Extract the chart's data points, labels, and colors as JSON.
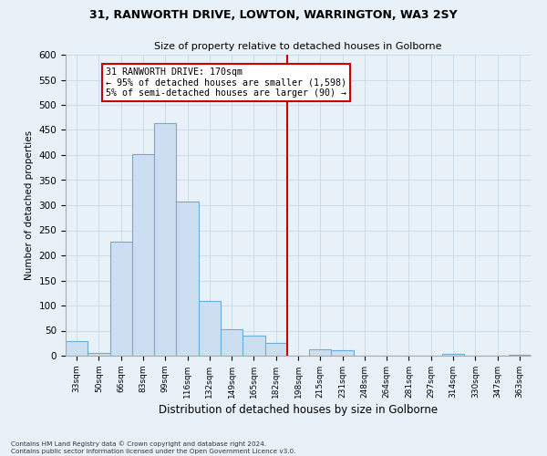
{
  "title_line1": "31, RANWORTH DRIVE, LOWTON, WARRINGTON, WA3 2SY",
  "title_line2": "Size of property relative to detached houses in Golborne",
  "xlabel": "Distribution of detached houses by size in Golborne",
  "ylabel": "Number of detached properties",
  "categories": [
    "33sqm",
    "50sqm",
    "66sqm",
    "83sqm",
    "99sqm",
    "116sqm",
    "132sqm",
    "149sqm",
    "165sqm",
    "182sqm",
    "198sqm",
    "215sqm",
    "231sqm",
    "248sqm",
    "264sqm",
    "281sqm",
    "297sqm",
    "314sqm",
    "330sqm",
    "347sqm",
    "363sqm"
  ],
  "values": [
    30,
    5,
    228,
    402,
    463,
    308,
    110,
    52,
    40,
    25,
    0,
    13,
    11,
    0,
    0,
    0,
    0,
    3,
    0,
    0,
    1
  ],
  "bar_color": "#ccdff0",
  "bar_edge_color": "#6aadd5",
  "vline_x": 9.5,
  "vline_color": "#cc0000",
  "annotation_text": "31 RANWORTH DRIVE: 170sqm\n← 95% of detached houses are smaller (1,598)\n5% of semi-detached houses are larger (90) →",
  "annotation_box_color": "#cc0000",
  "ylim": [
    0,
    600
  ],
  "yticks": [
    0,
    50,
    100,
    150,
    200,
    250,
    300,
    350,
    400,
    450,
    500,
    550,
    600
  ],
  "grid_color": "#c5d8ea",
  "bg_color": "#e8f0f8",
  "fig_bg_color": "#e8f0f8",
  "footnote": "Contains HM Land Registry data © Crown copyright and database right 2024.\nContains public sector information licensed under the Open Government Licence v3.0."
}
